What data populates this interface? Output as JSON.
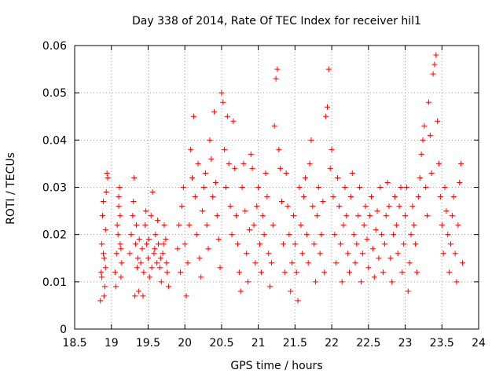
{
  "chart_data": {
    "type": "scatter",
    "title": "Day 338 of 2014, Rate Of TEC Index for receiver hil1",
    "xlabel": "GPS time / hours",
    "ylabel": "ROTI / TECUs",
    "xlim": [
      18.5,
      24
    ],
    "ylim": [
      0,
      0.06
    ],
    "xticks": [
      18.5,
      19,
      19.5,
      20,
      20.5,
      21,
      21.5,
      22,
      22.5,
      23,
      23.5,
      24
    ],
    "xtick_labels": [
      "18.5",
      "19",
      "19.5",
      "20",
      "20.5",
      "21",
      "21.5",
      "22",
      "22.5",
      "23",
      "23.5",
      "24"
    ],
    "yticks": [
      0,
      0.01,
      0.02,
      0.03,
      0.04,
      0.05,
      0.06
    ],
    "ytick_labels": [
      "0",
      "0.01",
      "0.02",
      "0.03",
      "0.04",
      "0.05",
      "0.06"
    ],
    "grid": true,
    "marker": "+",
    "color": "#ff0000",
    "series": [
      {
        "name": "hil1",
        "points": [
          [
            18.85,
            0.006
          ],
          [
            18.86,
            0.012
          ],
          [
            18.87,
            0.018
          ],
          [
            18.88,
            0.024
          ],
          [
            18.89,
            0.027
          ],
          [
            18.9,
            0.015
          ],
          [
            18.91,
            0.009
          ],
          [
            18.92,
            0.021
          ],
          [
            18.93,
            0.029
          ],
          [
            18.94,
            0.033
          ],
          [
            18.95,
            0.032
          ],
          [
            18.87,
            0.011
          ],
          [
            18.9,
            0.007
          ],
          [
            18.89,
            0.016
          ],
          [
            18.92,
            0.013
          ],
          [
            19.05,
            0.012
          ],
          [
            19.07,
            0.016
          ],
          [
            19.09,
            0.02
          ],
          [
            19.1,
            0.026
          ],
          [
            19.11,
            0.03
          ],
          [
            19.12,
            0.018
          ],
          [
            19.13,
            0.011
          ],
          [
            19.14,
            0.014
          ],
          [
            19.06,
            0.009
          ],
          [
            19.08,
            0.022
          ],
          [
            19.1,
            0.028
          ],
          [
            19.12,
            0.024
          ],
          [
            19.13,
            0.017
          ],
          [
            19.25,
            0.016
          ],
          [
            19.27,
            0.02
          ],
          [
            19.29,
            0.024
          ],
          [
            19.3,
            0.027
          ],
          [
            19.31,
            0.032
          ],
          [
            19.33,
            0.018
          ],
          [
            19.35,
            0.013
          ],
          [
            19.37,
            0.008
          ],
          [
            19.32,
            0.007
          ],
          [
            19.34,
            0.022
          ],
          [
            19.36,
            0.015
          ],
          [
            19.38,
            0.019
          ],
          [
            19.4,
            0.014
          ],
          [
            19.42,
            0.017
          ],
          [
            19.44,
            0.012
          ],
          [
            19.46,
            0.022
          ],
          [
            19.48,
            0.018
          ],
          [
            19.5,
            0.015
          ],
          [
            19.52,
            0.011
          ],
          [
            19.54,
            0.024
          ],
          [
            19.56,
            0.029
          ],
          [
            19.58,
            0.016
          ],
          [
            19.6,
            0.02
          ],
          [
            19.62,
            0.014
          ],
          [
            19.64,
            0.018
          ],
          [
            19.66,
            0.013
          ],
          [
            19.68,
            0.01
          ],
          [
            19.7,
            0.016
          ],
          [
            19.72,
            0.022
          ],
          [
            19.74,
            0.019
          ],
          [
            19.76,
            0.012
          ],
          [
            19.78,
            0.009
          ],
          [
            19.43,
            0.007
          ],
          [
            19.47,
            0.025
          ],
          [
            19.51,
            0.019
          ],
          [
            19.55,
            0.013
          ],
          [
            19.59,
            0.017
          ],
          [
            19.63,
            0.023
          ],
          [
            19.67,
            0.015
          ],
          [
            19.71,
            0.018
          ],
          [
            19.75,
            0.014
          ],
          [
            19.9,
            0.017
          ],
          [
            19.92,
            0.022
          ],
          [
            19.94,
            0.012
          ],
          [
            19.96,
            0.026
          ],
          [
            19.98,
            0.03
          ],
          [
            20.0,
            0.018
          ],
          [
            20.02,
            0.007
          ],
          [
            20.04,
            0.014
          ],
          [
            20.06,
            0.022
          ],
          [
            20.08,
            0.038
          ],
          [
            20.1,
            0.032
          ],
          [
            20.12,
            0.045
          ],
          [
            20.14,
            0.028
          ],
          [
            20.16,
            0.02
          ],
          [
            20.18,
            0.035
          ],
          [
            20.2,
            0.015
          ],
          [
            20.22,
            0.011
          ],
          [
            20.24,
            0.025
          ],
          [
            20.26,
            0.03
          ],
          [
            20.28,
            0.033
          ],
          [
            20.3,
            0.022
          ],
          [
            20.32,
            0.017
          ],
          [
            20.34,
            0.04
          ],
          [
            20.36,
            0.036
          ],
          [
            20.38,
            0.028
          ],
          [
            20.4,
            0.046
          ],
          [
            20.42,
            0.031
          ],
          [
            20.44,
            0.024
          ],
          [
            20.46,
            0.019
          ],
          [
            20.48,
            0.013
          ],
          [
            20.5,
            0.05
          ],
          [
            20.52,
            0.048
          ],
          [
            20.54,
            0.038
          ],
          [
            20.56,
            0.03
          ],
          [
            20.58,
            0.045
          ],
          [
            20.6,
            0.035
          ],
          [
            20.62,
            0.026
          ],
          [
            20.64,
            0.02
          ],
          [
            20.66,
            0.044
          ],
          [
            20.68,
            0.034
          ],
          [
            20.7,
            0.024
          ],
          [
            20.72,
            0.018
          ],
          [
            20.74,
            0.012
          ],
          [
            20.76,
            0.008
          ],
          [
            20.78,
            0.03
          ],
          [
            20.8,
            0.035
          ],
          [
            20.82,
            0.025
          ],
          [
            20.84,
            0.016
          ],
          [
            20.86,
            0.01
          ],
          [
            20.88,
            0.021
          ],
          [
            20.9,
            0.037
          ],
          [
            20.92,
            0.034
          ],
          [
            20.94,
            0.022
          ],
          [
            20.96,
            0.014
          ],
          [
            20.98,
            0.026
          ],
          [
            21.0,
            0.03
          ],
          [
            21.02,
            0.018
          ],
          [
            21.04,
            0.012
          ],
          [
            21.06,
            0.024
          ],
          [
            21.08,
            0.02
          ],
          [
            21.1,
            0.033
          ],
          [
            21.12,
            0.028
          ],
          [
            21.14,
            0.016
          ],
          [
            21.16,
            0.009
          ],
          [
            21.18,
            0.014
          ],
          [
            21.2,
            0.022
          ],
          [
            21.22,
            0.043
          ],
          [
            21.24,
            0.053
          ],
          [
            21.26,
            0.055
          ],
          [
            21.28,
            0.038
          ],
          [
            21.3,
            0.034
          ],
          [
            21.32,
            0.027
          ],
          [
            21.34,
            0.018
          ],
          [
            21.36,
            0.012
          ],
          [
            21.38,
            0.033
          ],
          [
            21.4,
            0.026
          ],
          [
            21.42,
            0.02
          ],
          [
            21.44,
            0.008
          ],
          [
            21.46,
            0.014
          ],
          [
            21.48,
            0.024
          ],
          [
            21.5,
            0.018
          ],
          [
            21.52,
            0.012
          ],
          [
            21.54,
            0.006
          ],
          [
            21.56,
            0.03
          ],
          [
            21.58,
            0.022
          ],
          [
            21.6,
            0.016
          ],
          [
            21.62,
            0.028
          ],
          [
            21.64,
            0.032
          ],
          [
            21.66,
            0.02
          ],
          [
            21.68,
            0.014
          ],
          [
            21.7,
            0.035
          ],
          [
            21.72,
            0.04
          ],
          [
            21.74,
            0.026
          ],
          [
            21.76,
            0.018
          ],
          [
            21.78,
            0.01
          ],
          [
            21.8,
            0.024
          ],
          [
            21.82,
            0.03
          ],
          [
            21.84,
            0.016
          ],
          [
            21.86,
            0.02
          ],
          [
            21.88,
            0.027
          ],
          [
            21.9,
            0.012
          ],
          [
            21.92,
            0.045
          ],
          [
            21.94,
            0.047
          ],
          [
            21.96,
            0.055
          ],
          [
            21.98,
            0.034
          ],
          [
            22.0,
            0.038
          ],
          [
            22.02,
            0.028
          ],
          [
            22.04,
            0.02
          ],
          [
            22.06,
            0.014
          ],
          [
            22.08,
            0.032
          ],
          [
            22.1,
            0.026
          ],
          [
            22.12,
            0.018
          ],
          [
            22.14,
            0.01
          ],
          [
            22.16,
            0.022
          ],
          [
            22.18,
            0.03
          ],
          [
            22.2,
            0.024
          ],
          [
            22.22,
            0.016
          ],
          [
            22.24,
            0.012
          ],
          [
            22.26,
            0.028
          ],
          [
            22.28,
            0.033
          ],
          [
            22.3,
            0.02
          ],
          [
            22.32,
            0.014
          ],
          [
            22.34,
            0.018
          ],
          [
            22.36,
            0.024
          ],
          [
            22.38,
            0.03
          ],
          [
            22.4,
            0.01
          ],
          [
            22.42,
            0.016
          ],
          [
            22.44,
            0.022
          ],
          [
            22.46,
            0.026
          ],
          [
            22.48,
            0.019
          ],
          [
            22.5,
            0.013
          ],
          [
            22.52,
            0.024
          ],
          [
            22.54,
            0.028
          ],
          [
            22.56,
            0.017
          ],
          [
            22.58,
            0.011
          ],
          [
            22.6,
            0.021
          ],
          [
            22.62,
            0.025
          ],
          [
            22.64,
            0.015
          ],
          [
            22.66,
            0.03
          ],
          [
            22.68,
            0.02
          ],
          [
            22.7,
            0.012
          ],
          [
            22.72,
            0.018
          ],
          [
            22.74,
            0.024
          ],
          [
            22.76,
            0.031
          ],
          [
            22.78,
            0.026
          ],
          [
            22.8,
            0.015
          ],
          [
            22.82,
            0.01
          ],
          [
            22.84,
            0.02
          ],
          [
            22.86,
            0.028
          ],
          [
            22.88,
            0.022
          ],
          [
            22.9,
            0.016
          ],
          [
            22.92,
            0.026
          ],
          [
            22.94,
            0.03
          ],
          [
            22.96,
            0.012
          ],
          [
            22.98,
            0.018
          ],
          [
            23.0,
            0.024
          ],
          [
            23.02,
            0.03
          ],
          [
            23.04,
            0.008
          ],
          [
            23.06,
            0.014
          ],
          [
            23.08,
            0.02
          ],
          [
            23.1,
            0.026
          ],
          [
            23.12,
            0.022
          ],
          [
            23.14,
            0.018
          ],
          [
            23.16,
            0.012
          ],
          [
            23.18,
            0.028
          ],
          [
            23.2,
            0.032
          ],
          [
            23.22,
            0.037
          ],
          [
            23.24,
            0.04
          ],
          [
            23.26,
            0.043
          ],
          [
            23.28,
            0.03
          ],
          [
            23.3,
            0.024
          ],
          [
            23.32,
            0.048
          ],
          [
            23.34,
            0.041
          ],
          [
            23.36,
            0.033
          ],
          [
            23.38,
            0.054
          ],
          [
            23.4,
            0.056
          ],
          [
            23.42,
            0.058
          ],
          [
            23.44,
            0.044
          ],
          [
            23.46,
            0.035
          ],
          [
            23.48,
            0.028
          ],
          [
            23.5,
            0.022
          ],
          [
            23.52,
            0.016
          ],
          [
            23.54,
            0.03
          ],
          [
            23.56,
            0.025
          ],
          [
            23.58,
            0.02
          ],
          [
            23.6,
            0.012
          ],
          [
            23.62,
            0.018
          ],
          [
            23.64,
            0.024
          ],
          [
            23.66,
            0.028
          ],
          [
            23.68,
            0.016
          ],
          [
            23.7,
            0.01
          ],
          [
            23.72,
            0.022
          ],
          [
            23.74,
            0.031
          ],
          [
            23.76,
            0.035
          ],
          [
            23.78,
            0.014
          ]
        ]
      }
    ]
  }
}
